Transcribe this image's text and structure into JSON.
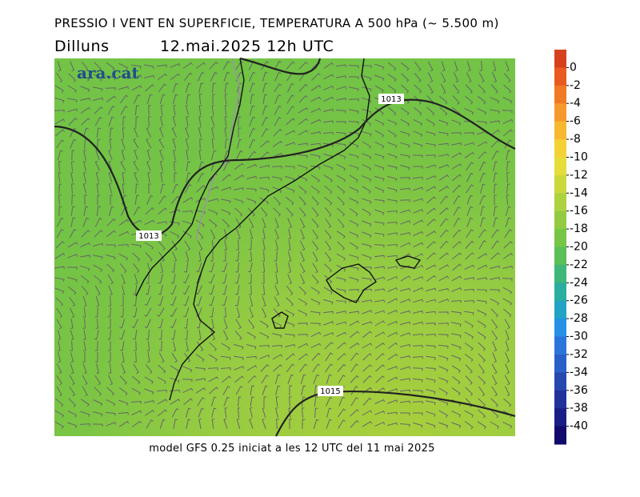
{
  "header": {
    "title": "PRESSIO I VENT EN SUPERFICIE, TEMPERATURA A 500 hPa (~ 5.500 m)",
    "weekday": "Dilluns",
    "valid_time": "12.mai.2025 12h UTC"
  },
  "map": {
    "logo": "ara.cat",
    "isobar_labels": [
      "1013",
      "1013",
      "1015"
    ]
  },
  "colorbar": {
    "range": [
      2,
      -42
    ],
    "ticks": [
      0,
      -2,
      -4,
      -6,
      -8,
      -10,
      -12,
      -14,
      -16,
      -18,
      -20,
      -22,
      -24,
      -26,
      -28,
      -30,
      -32,
      -34,
      -36,
      -38,
      -40
    ],
    "colors": [
      "#d7401c",
      "#e85a20",
      "#f07a24",
      "#f59a2a",
      "#f7b82f",
      "#f5d234",
      "#e6dc3a",
      "#cbd83c",
      "#aed23e",
      "#92cb41",
      "#76c545",
      "#5bbe56",
      "#3fb67a",
      "#2aaea0",
      "#22a2c4",
      "#2590e6",
      "#2a75dc",
      "#2a5ec8",
      "#2848b0",
      "#21329a",
      "#191e84",
      "#120a6c"
    ]
  },
  "footer": "model GFS 0.25 iniciat a les 12 UTC del 11 mai 2025"
}
